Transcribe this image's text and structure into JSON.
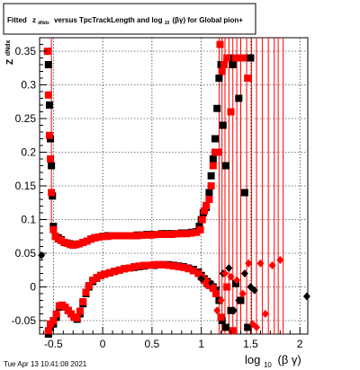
{
  "title": {
    "prefix": "Fitted",
    "z_main": "z",
    "z_sub": "dNdx",
    "mid": "versus TpcTrackLength and log",
    "log_sub": "10",
    "tail": "(βγ) for Global pion+"
  },
  "timestamp": "Tue Apr 13 10:41:08 2021",
  "ylabel": {
    "main": "Z",
    "sub": "dNdx"
  },
  "xlabel": {
    "main": "log",
    "sub": "10",
    "tail": "(β γ)"
  },
  "chart_data": {
    "type": "scatter",
    "xlim": [
      -0.64,
      2.08
    ],
    "ylim": [
      -0.07,
      0.37
    ],
    "x_ticks": [
      -0.5,
      0,
      0.5,
      1,
      1.5,
      2
    ],
    "x_tick_labels": [
      "-0.5",
      "0",
      "0.5",
      "1",
      "1.5",
      "2"
    ],
    "y_ticks": [
      -0.05,
      0,
      0.05,
      0.1,
      0.15,
      0.2,
      0.25,
      0.3,
      0.35
    ],
    "y_tick_labels": [
      "-0.05",
      "0",
      "0.05",
      "0.1",
      "0.15",
      "0.2",
      "0.25",
      "0.3",
      "0.35"
    ],
    "grid": true,
    "colors": {
      "black_series": "#000000",
      "red_series": "#ff0000"
    },
    "series": [
      {
        "marker": "square",
        "color": "#000000",
        "points": [
          [
            -0.55,
            0.33
          ],
          [
            -0.54,
            0.27
          ],
          [
            -0.53,
            0.22
          ],
          [
            -0.52,
            0.18
          ],
          [
            -0.51,
            0.135
          ],
          [
            -0.5,
            0.09
          ],
          [
            -0.48,
            0.075
          ],
          [
            -0.45,
            0.073
          ],
          [
            -0.42,
            0.07
          ],
          [
            -0.39,
            0.066
          ],
          [
            -0.36,
            0.065
          ],
          [
            -0.33,
            0.064
          ],
          [
            -0.3,
            0.063
          ],
          [
            -0.27,
            0.063
          ],
          [
            -0.24,
            0.064
          ],
          [
            -0.2,
            0.066
          ],
          [
            -0.16,
            0.068
          ],
          [
            -0.12,
            0.071
          ],
          [
            -0.08,
            0.073
          ],
          [
            -0.04,
            0.074
          ],
          [
            0.0,
            0.075
          ],
          [
            0.05,
            0.076
          ],
          [
            0.1,
            0.076
          ],
          [
            0.15,
            0.076
          ],
          [
            0.2,
            0.076
          ],
          [
            0.25,
            0.076
          ],
          [
            0.3,
            0.076
          ],
          [
            0.35,
            0.077
          ],
          [
            0.4,
            0.077
          ],
          [
            0.45,
            0.078
          ],
          [
            0.5,
            0.078
          ],
          [
            0.55,
            0.078
          ],
          [
            0.6,
            0.079
          ],
          [
            0.65,
            0.079
          ],
          [
            0.7,
            0.079
          ],
          [
            0.75,
            0.079
          ],
          [
            0.8,
            0.08
          ],
          [
            0.85,
            0.08
          ],
          [
            0.9,
            0.081
          ],
          [
            0.95,
            0.082
          ],
          [
            0.98,
            0.09
          ],
          [
            1.0,
            0.1
          ],
          [
            1.02,
            0.11
          ],
          [
            1.05,
            0.118
          ],
          [
            1.08,
            0.14
          ],
          [
            1.1,
            0.165
          ],
          [
            1.12,
            0.19
          ],
          [
            1.14,
            0.22
          ],
          [
            1.16,
            0.265
          ],
          [
            1.18,
            0.31
          ],
          [
            1.2,
            0.33
          ],
          [
            1.22,
            0.24
          ],
          [
            1.25,
            0.18
          ],
          [
            1.28,
            0.34
          ],
          [
            1.32,
            0.33
          ],
          [
            1.38,
            0.28
          ],
          [
            1.44,
            0.14
          ],
          [
            1.5,
            0.34
          ],
          [
            -0.55,
            -0.07
          ],
          [
            -0.53,
            -0.06
          ],
          [
            -0.5,
            -0.055
          ],
          [
            -0.47,
            -0.045
          ],
          [
            -0.44,
            -0.03
          ],
          [
            -0.41,
            -0.028
          ],
          [
            -0.38,
            -0.03
          ],
          [
            -0.35,
            -0.035
          ],
          [
            -0.32,
            -0.04
          ],
          [
            -0.29,
            -0.045
          ],
          [
            -0.26,
            -0.048
          ],
          [
            -0.23,
            -0.04
          ],
          [
            -0.2,
            -0.025
          ],
          [
            -0.17,
            -0.01
          ],
          [
            -0.14,
            0.0
          ],
          [
            -0.1,
            0.008
          ],
          [
            -0.06,
            0.013
          ],
          [
            -0.02,
            0.017
          ],
          [
            0.02,
            0.019
          ],
          [
            0.07,
            0.021
          ],
          [
            0.12,
            0.023
          ],
          [
            0.17,
            0.025
          ],
          [
            0.22,
            0.027
          ],
          [
            0.27,
            0.028
          ],
          [
            0.32,
            0.029
          ],
          [
            0.37,
            0.03
          ],
          [
            0.42,
            0.031
          ],
          [
            0.47,
            0.032
          ],
          [
            0.52,
            0.032
          ],
          [
            0.57,
            0.033
          ],
          [
            0.62,
            0.033
          ],
          [
            0.67,
            0.033
          ],
          [
            0.72,
            0.032
          ],
          [
            0.77,
            0.031
          ],
          [
            0.82,
            0.03
          ],
          [
            0.87,
            0.028
          ],
          [
            0.92,
            0.026
          ],
          [
            0.97,
            0.022
          ],
          [
            1.0,
            0.017
          ],
          [
            1.03,
            0.012
          ],
          [
            1.06,
            0.008
          ],
          [
            1.09,
            0.004
          ],
          [
            1.12,
            0.0
          ],
          [
            1.15,
            -0.005
          ],
          [
            1.18,
            -0.02
          ],
          [
            1.21,
            -0.05
          ],
          [
            1.25,
            -0.06
          ],
          [
            1.3,
            -0.035
          ],
          [
            1.35,
            0.005
          ],
          [
            1.4,
            -0.02
          ],
          [
            1.47,
            -0.06
          ]
        ]
      },
      {
        "marker": "square",
        "color": "#ff0000",
        "points": [
          [
            -0.56,
            0.35
          ],
          [
            -0.55,
            0.285
          ],
          [
            -0.54,
            0.225
          ],
          [
            -0.53,
            0.19
          ],
          [
            -0.52,
            0.14
          ],
          [
            -0.5,
            0.085
          ],
          [
            -0.48,
            0.075
          ],
          [
            -0.45,
            0.071
          ],
          [
            -0.42,
            0.069
          ],
          [
            -0.39,
            0.066
          ],
          [
            -0.36,
            0.065
          ],
          [
            -0.33,
            0.063
          ],
          [
            -0.3,
            0.062
          ],
          [
            -0.27,
            0.063
          ],
          [
            -0.24,
            0.064
          ],
          [
            -0.2,
            0.066
          ],
          [
            -0.16,
            0.068
          ],
          [
            -0.12,
            0.071
          ],
          [
            -0.08,
            0.073
          ],
          [
            -0.04,
            0.074
          ],
          [
            0.0,
            0.075
          ],
          [
            0.05,
            0.075
          ],
          [
            0.1,
            0.076
          ],
          [
            0.15,
            0.076
          ],
          [
            0.2,
            0.076
          ],
          [
            0.25,
            0.076
          ],
          [
            0.3,
            0.076
          ],
          [
            0.35,
            0.076
          ],
          [
            0.4,
            0.077
          ],
          [
            0.45,
            0.077
          ],
          [
            0.5,
            0.077
          ],
          [
            0.55,
            0.078
          ],
          [
            0.6,
            0.078
          ],
          [
            0.65,
            0.078
          ],
          [
            0.7,
            0.078
          ],
          [
            0.75,
            0.079
          ],
          [
            0.8,
            0.079
          ],
          [
            0.85,
            0.079
          ],
          [
            0.9,
            0.08
          ],
          [
            0.95,
            0.081
          ],
          [
            0.99,
            0.085
          ],
          [
            1.01,
            0.1
          ],
          [
            1.03,
            0.113
          ],
          [
            1.05,
            0.121
          ],
          [
            1.08,
            0.13
          ],
          [
            1.1,
            0.15
          ],
          [
            1.12,
            0.18
          ],
          [
            1.14,
            0.2
          ],
          [
            1.17,
            0.2
          ],
          [
            1.19,
            0.36
          ],
          [
            1.21,
            0.32
          ],
          [
            1.23,
            0.33
          ],
          [
            1.26,
            0.34
          ],
          [
            1.3,
            0.26
          ],
          [
            1.35,
            0.34
          ],
          [
            1.42,
            0.34
          ],
          [
            1.47,
            0.31
          ],
          [
            -0.55,
            -0.065
          ],
          [
            -0.53,
            -0.055
          ],
          [
            -0.5,
            -0.05
          ],
          [
            -0.47,
            -0.04
          ],
          [
            -0.44,
            -0.028
          ],
          [
            -0.41,
            -0.027
          ],
          [
            -0.38,
            -0.03
          ],
          [
            -0.35,
            -0.035
          ],
          [
            -0.32,
            -0.04
          ],
          [
            -0.29,
            -0.045
          ],
          [
            -0.26,
            -0.046
          ],
          [
            -0.23,
            -0.036
          ],
          [
            -0.2,
            -0.022
          ],
          [
            -0.17,
            -0.008
          ],
          [
            -0.14,
            0.002
          ],
          [
            -0.1,
            0.01
          ],
          [
            -0.06,
            0.014
          ],
          [
            -0.02,
            0.017
          ],
          [
            0.02,
            0.019
          ],
          [
            0.07,
            0.021
          ],
          [
            0.12,
            0.023
          ],
          [
            0.17,
            0.025
          ],
          [
            0.22,
            0.027
          ],
          [
            0.27,
            0.028
          ],
          [
            0.32,
            0.03
          ],
          [
            0.37,
            0.031
          ],
          [
            0.42,
            0.032
          ],
          [
            0.47,
            0.032
          ],
          [
            0.52,
            0.033
          ],
          [
            0.57,
            0.033
          ],
          [
            0.62,
            0.033
          ],
          [
            0.67,
            0.032
          ],
          [
            0.72,
            0.031
          ],
          [
            0.77,
            0.03
          ],
          [
            0.82,
            0.029
          ],
          [
            0.87,
            0.027
          ],
          [
            0.92,
            0.024
          ],
          [
            0.97,
            0.02
          ],
          [
            1.0,
            0.015
          ],
          [
            1.03,
            0.01
          ],
          [
            1.06,
            0.006
          ],
          [
            1.09,
            0.002
          ],
          [
            1.12,
            -0.002
          ],
          [
            1.15,
            -0.01
          ],
          [
            1.2,
            -0.045
          ],
          [
            1.26,
            0.0
          ],
          [
            1.32,
            -0.065
          ]
        ]
      },
      {
        "marker": "diamond",
        "color": "#000000",
        "points": [
          [
            -0.62,
            0.047
          ],
          [
            2.07,
            -0.014
          ],
          [
            1.0,
            0.012
          ],
          [
            1.1,
            0.005
          ],
          [
            1.18,
            -0.02
          ],
          [
            1.22,
            0.02
          ],
          [
            1.28,
            0.028
          ],
          [
            1.33,
            -0.035
          ],
          [
            1.38,
            -0.02
          ],
          [
            1.44,
            0.02
          ],
          [
            1.5,
            0.0
          ],
          [
            1.54,
            -0.005
          ]
        ]
      },
      {
        "marker": "diamond",
        "color": "#ff0000",
        "points": [
          [
            1.05,
            0.003
          ],
          [
            1.12,
            0.0
          ],
          [
            1.16,
            -0.035
          ],
          [
            1.2,
            -0.02
          ],
          [
            1.24,
            0.02
          ],
          [
            1.3,
            0.015
          ],
          [
            1.36,
            0.01
          ],
          [
            1.42,
            -0.01
          ],
          [
            1.48,
            0.035
          ],
          [
            1.52,
            -0.055
          ],
          [
            1.56,
            -0.06
          ],
          [
            1.6,
            0.035
          ],
          [
            1.65,
            -0.04
          ],
          [
            1.72,
            0.032
          ],
          [
            1.8,
            0.04
          ]
        ]
      }
    ],
    "error_lines": [
      [
        -0.52,
        0.4,
        0.09
      ],
      [
        1.18,
        0.38,
        -0.07
      ],
      [
        1.21,
        0.38,
        -0.07
      ],
      [
        1.24,
        0.38,
        -0.07
      ],
      [
        1.28,
        0.38,
        -0.07
      ],
      [
        1.32,
        0.38,
        -0.07
      ],
      [
        1.36,
        0.38,
        -0.07
      ],
      [
        1.4,
        0.38,
        -0.07
      ],
      [
        1.46,
        0.38,
        -0.07
      ],
      [
        1.51,
        0.38,
        -0.07
      ],
      [
        1.56,
        0.38,
        -0.07
      ],
      [
        1.62,
        0.38,
        -0.07
      ],
      [
        1.68,
        0.38,
        -0.07
      ],
      [
        1.74,
        0.38,
        -0.07
      ],
      [
        1.78,
        0.38,
        -0.07
      ],
      [
        1.83,
        0.38,
        -0.07
      ]
    ]
  }
}
